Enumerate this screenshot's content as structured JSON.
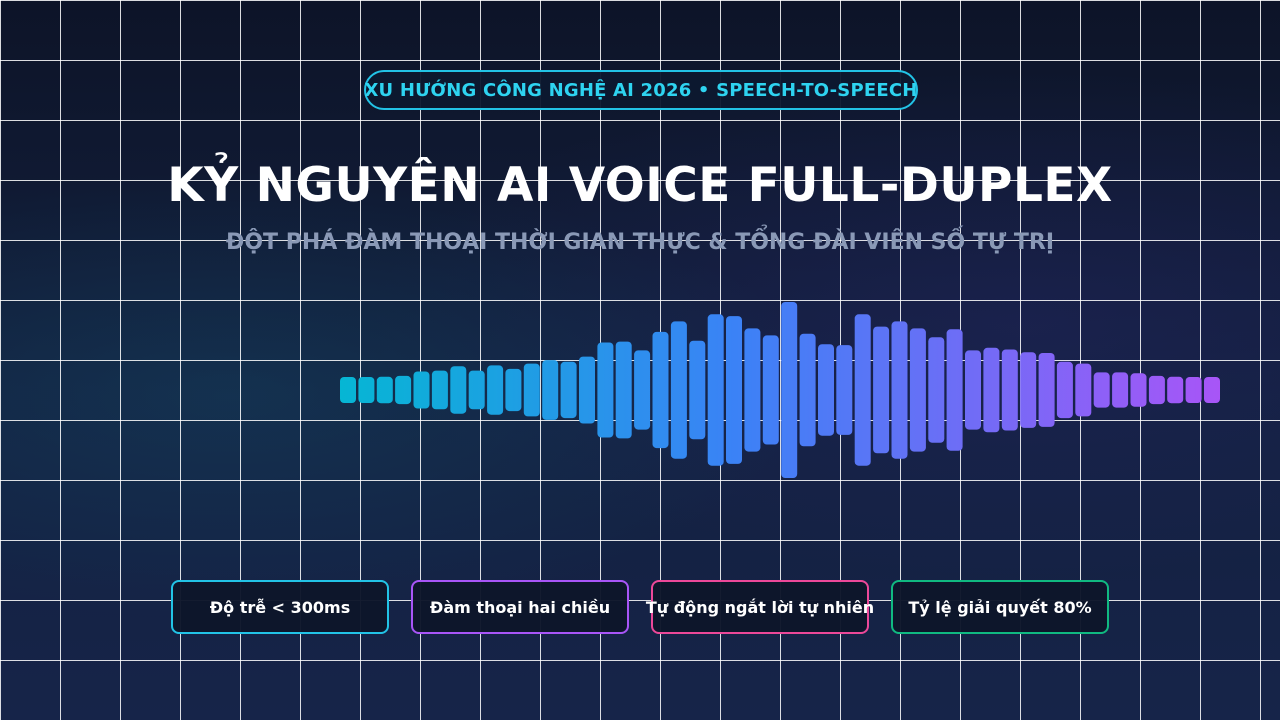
{
  "badge": "XU HƯỚNG CÔNG NGHỆ AI 2026 • SPEECH-TO-SPEECH",
  "title": "KỶ NGUYÊN AI VOICE FULL-DUPLEX",
  "subtitle": "ĐỘT PHÁ ĐÀM THOẠI THỜI GIAN THỰC & TỔNG ĐÀI VIÊN SỐ TỰ TRỊ",
  "colors": {
    "accent_cyan": "#22c3e6",
    "wave_start": "#06b6d4",
    "wave_mid": "#3b82f6",
    "wave_end": "#a855f7"
  },
  "waveform": {
    "levels": [
      0.13,
      0.13,
      0.15,
      0.16,
      0.21,
      0.22,
      0.27,
      0.22,
      0.28,
      0.24,
      0.3,
      0.34,
      0.32,
      0.38,
      0.54,
      0.55,
      0.45,
      0.66,
      0.78,
      0.56,
      0.86,
      0.84,
      0.7,
      0.62,
      1.0,
      0.64,
      0.52,
      0.51,
      0.86,
      0.72,
      0.78,
      0.7,
      0.6,
      0.69,
      0.45,
      0.48,
      0.46,
      0.43,
      0.42,
      0.32,
      0.3,
      0.2,
      0.2,
      0.19,
      0.16,
      0.15,
      0.13,
      0.13
    ]
  },
  "cards": [
    {
      "label": "Độ trễ < 300ms",
      "color": "#22c3e6"
    },
    {
      "label": "Đàm thoại hai chiều",
      "color": "#a855f7"
    },
    {
      "label": "Tự động ngắt lời tự nhiên",
      "color": "#ec4899"
    },
    {
      "label": "Tỷ lệ giải quyết 80%",
      "color": "#10b981"
    }
  ]
}
